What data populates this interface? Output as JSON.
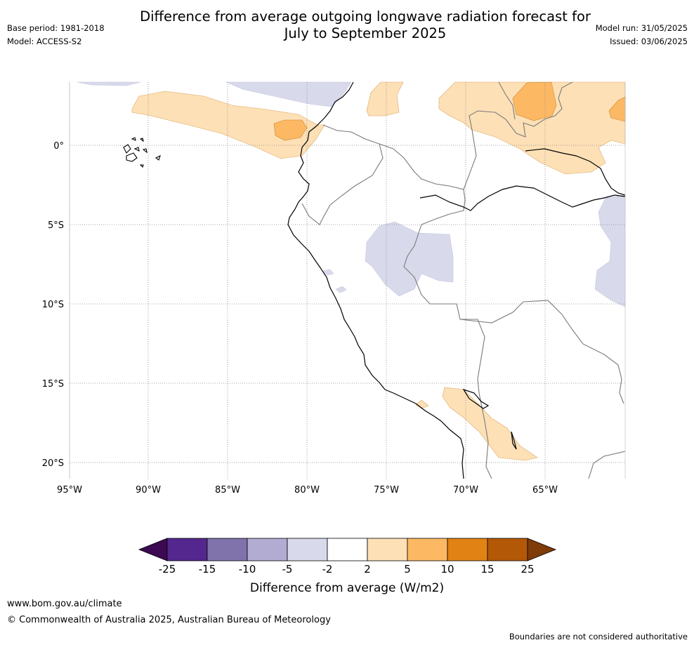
{
  "header": {
    "title_line1": "Difference from average outgoing longwave radiation forecast for",
    "title_line2": "July to September 2025",
    "base_period": "Base period: 1981-2018",
    "model": "Model: ACCESS-S2",
    "model_run": "Model run: 31/05/2025",
    "issued": "Issued: 03/06/2025"
  },
  "map": {
    "lon_labels": [
      "95°W",
      "90°W",
      "85°W",
      "80°W",
      "75°W",
      "70°W",
      "65°W"
    ],
    "lat_labels": [
      "0°",
      "5°S",
      "10°S",
      "15°S",
      "20°S"
    ]
  },
  "colorbar": {
    "ticks": [
      "-25",
      "-15",
      "-10",
      "-5",
      "-2",
      "2",
      "5",
      "10",
      "15",
      "25"
    ],
    "colors": [
      "#3b0a52",
      "#54278f",
      "#8073ac",
      "#b2abd2",
      "#d8daeb",
      "#ffffff",
      "#fee0b6",
      "#fdb863",
      "#e08214",
      "#b35806",
      "#7f3b08"
    ],
    "label": "Difference from average (W/m2)"
  },
  "footer": {
    "url": "www.bom.gov.au/climate",
    "copyright": "© Commonwealth of Australia 2025, Australian Bureau of Meteorology",
    "disclaimer": "Boundaries are not considered authoritative"
  }
}
